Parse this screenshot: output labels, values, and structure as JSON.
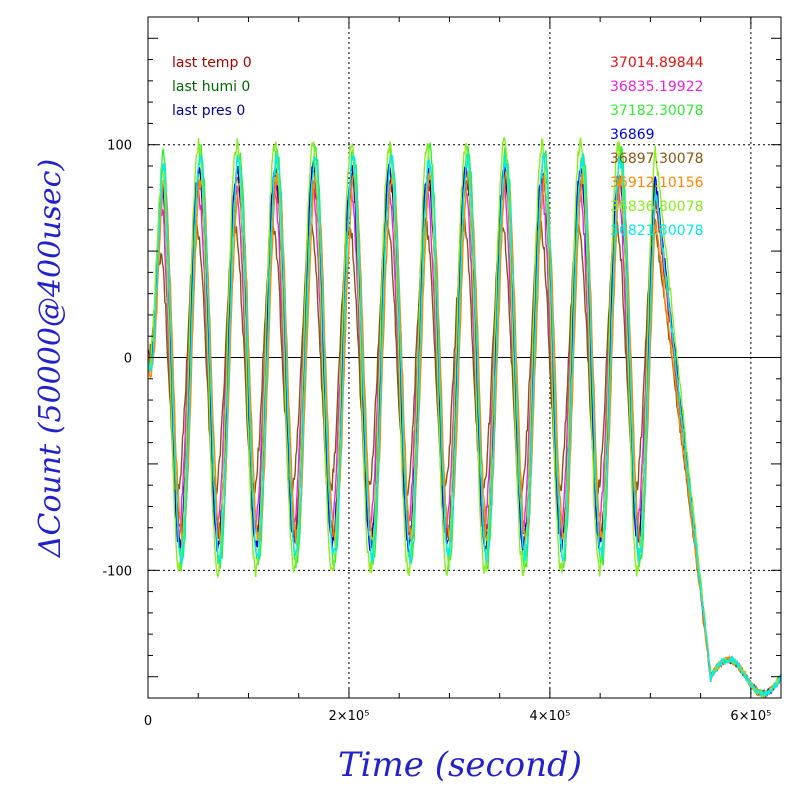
{
  "chart_data": {
    "type": "line",
    "title": "",
    "xlabel": "Time (second)",
    "ylabel": "ΔCount (50000@400usec)",
    "xlim": [
      0,
      630000
    ],
    "ylim": [
      -160,
      160
    ],
    "x_ticks": [
      {
        "value": 0,
        "label": "0"
      },
      {
        "value": 200000,
        "label": "2×10⁵"
      },
      {
        "value": 400000,
        "label": "4×10⁵"
      },
      {
        "value": 600000,
        "label": "6×10⁵"
      }
    ],
    "y_ticks": [
      {
        "value": 100,
        "label": "100"
      },
      {
        "value": 0,
        "label": "0"
      },
      {
        "value": -100,
        "label": "-100"
      }
    ],
    "grid": "dotted at major ticks",
    "zero_line": true,
    "left_legend": [
      {
        "text": "last temp 0",
        "color": "#aa0000"
      },
      {
        "text": "last humi 0",
        "color": "#006600"
      },
      {
        "text": "last pres 0",
        "color": "#000099"
      }
    ],
    "series": [
      {
        "name": "37014.89844",
        "color": "#ee1111",
        "amp": 0.82,
        "phase": 0.0,
        "seed": 11
      },
      {
        "name": "36835.19922",
        "color": "#ee22dd",
        "amp": 0.8,
        "phase": 0.05,
        "seed": 23
      },
      {
        "name": "37182.30078",
        "color": "#33ee33",
        "amp": 0.97,
        "phase": -0.03,
        "seed": 37
      },
      {
        "name": "36869",
        "color": "#0000dd",
        "amp": 0.88,
        "phase": 0.02,
        "seed": 41
      },
      {
        "name": "36897.30078",
        "color": "#885511",
        "amp": 0.62,
        "phase": 0.08,
        "seed": 53
      },
      {
        "name": "36912.10156",
        "color": "#ff8800",
        "amp": 0.85,
        "phase": -0.05,
        "seed": 67
      },
      {
        "name": "36836.80078",
        "color": "#88ee22",
        "amp": 1.0,
        "phase": 0.03,
        "seed": 71
      },
      {
        "name": "36821.30078",
        "color": "#00eeee",
        "amp": 0.93,
        "phase": -0.02,
        "seed": 83
      }
    ],
    "oscillation": {
      "period": 38000,
      "offset": 0,
      "amplitude": 100,
      "end_x": 505000,
      "decay_end_x": 560000,
      "tail_level": -150
    }
  }
}
